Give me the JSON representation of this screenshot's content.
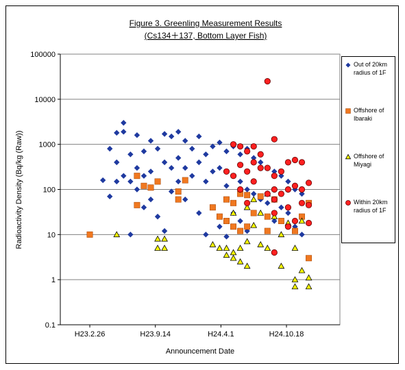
{
  "chart_data": {
    "type": "scatter",
    "title": "Figure 3. Greenling Measurement Results",
    "subtitle": "(Cs134＋137, Bottom Layer Fish)",
    "x_label": "Announcement Date",
    "y_label": "Radioactivity Density (Bq/kg (Raw))",
    "log_y": true,
    "grid": true,
    "legend": "right",
    "xlim": [
      "H22.11.28",
      "H25.3.30"
    ],
    "xticks": [
      "H23.2.26",
      "H23.9.14",
      "H24.4.1",
      "H24.10.18"
    ],
    "ylim": [
      0.1,
      100000
    ],
    "yticks": [
      0.1,
      1,
      10,
      100,
      1000,
      10000,
      100000
    ],
    "series": [
      {
        "name": "Out of 20km radius of 1F",
        "color": "#1f3aa0",
        "marker": "diamond",
        "x": [
          "H23.4.7",
          "H23.4.28",
          "H23.4.28",
          "H23.5.19",
          "H23.5.19",
          "H23.5.19",
          "H23.6.9",
          "H23.6.9",
          "H23.6.9",
          "H23.6.30",
          "H23.6.30",
          "H23.6.30",
          "H23.7.20",
          "H23.7.20",
          "H23.7.20",
          "H23.8.10",
          "H23.8.10",
          "H23.8.10",
          "H23.8.31",
          "H23.8.31",
          "H23.8.31",
          "H23.9.21",
          "H23.9.21",
          "H23.9.21",
          "H23.10.12",
          "H23.10.12",
          "H23.10.12",
          "H23.11.2",
          "H23.11.2",
          "H23.11.2",
          "H23.11.23",
          "H23.11.23",
          "H23.11.23",
          "H23.12.14",
          "H23.12.14",
          "H23.12.14",
          "H24.1.4",
          "H24.1.4",
          "H24.1.25",
          "H24.1.25",
          "H24.1.25",
          "H24.2.15",
          "H24.2.15",
          "H24.2.15",
          "H24.3.7",
          "H24.3.7",
          "H24.3.7",
          "H24.3.28",
          "H24.3.28",
          "H24.3.28",
          "H24.4.18",
          "H24.4.18",
          "H24.4.18",
          "H24.5.9",
          "H24.5.9",
          "H24.5.9",
          "H24.5.30",
          "H24.5.30",
          "H24.5.30",
          "H24.6.20",
          "H24.6.20",
          "H24.6.20",
          "H24.7.10",
          "H24.7.10",
          "H24.7.31",
          "H24.7.31",
          "H24.8.21",
          "H24.8.21",
          "H24.9.11",
          "H24.9.11",
          "H24.10.2",
          "H24.10.2",
          "H24.10.23",
          "H24.10.23",
          "H24.11.13",
          "H24.11.13",
          "H24.12.4",
          "H24.12.4"
        ],
        "values": [
          160,
          800,
          70,
          1800,
          400,
          150,
          3000,
          1900,
          200,
          600,
          150,
          10,
          1600,
          300,
          100,
          700,
          200,
          40,
          1200,
          250,
          60,
          800,
          150,
          25,
          1700,
          400,
          12,
          1500,
          300,
          90,
          1900,
          500,
          150,
          1200,
          300,
          60,
          800,
          200,
          1500,
          400,
          30,
          600,
          150,
          10,
          900,
          250,
          40,
          1100,
          300,
          15,
          700,
          120,
          9,
          900,
          200,
          30,
          600,
          150,
          20,
          800,
          100,
          12,
          500,
          80,
          400,
          60,
          300,
          50,
          250,
          20,
          200,
          40,
          150,
          30,
          100,
          15,
          80,
          10
        ]
      },
      {
        "name": "Offshore of Ibaraki",
        "color": "#f07820",
        "marker": "square",
        "x": [
          "H23.2.26",
          "H23.7.20",
          "H23.7.20",
          "H23.8.10",
          "H23.8.31",
          "H23.9.21",
          "H23.11.23",
          "H23.11.23",
          "H23.12.14",
          "H24.3.7",
          "H24.3.28",
          "H24.4.18",
          "H24.4.18",
          "H24.5.9",
          "H24.5.9",
          "H24.5.30",
          "H24.5.30",
          "H24.6.20",
          "H24.6.20",
          "H24.7.10",
          "H24.7.31",
          "H24.8.21",
          "H24.8.21",
          "H24.9.11",
          "H24.10.2",
          "H24.11.13",
          "H24.12.4",
          "H24.12.25",
          "H24.12.25"
        ],
        "values": [
          10,
          200,
          45,
          120,
          110,
          150,
          90,
          60,
          160,
          40,
          25,
          60,
          20,
          50,
          15,
          80,
          12,
          75,
          15,
          30,
          70,
          12,
          25,
          60,
          20,
          12,
          25,
          3,
          50
        ]
      },
      {
        "name": "Offshore of Miyagi",
        "color": "#ffff00",
        "marker": "triangle",
        "x": [
          "H23.5.19",
          "H23.9.21",
          "H23.9.21",
          "H23.10.12",
          "H23.10.12",
          "H24.3.7",
          "H24.3.28",
          "H24.4.18",
          "H24.4.18",
          "H24.5.9",
          "H24.5.9",
          "H24.5.9",
          "H24.5.30",
          "H24.5.30",
          "H24.6.20",
          "H24.6.20",
          "H24.6.20",
          "H24.7.10",
          "H24.7.10",
          "H24.7.31",
          "H24.7.31",
          "H24.8.21",
          "H24.8.21",
          "H24.9.11",
          "H24.10.2",
          "H24.10.2",
          "H24.10.23",
          "H24.11.13",
          "H24.11.13",
          "H24.11.13",
          "H24.12.4",
          "H24.12.25",
          "H24.12.25",
          "H24.12.4"
        ],
        "values": [
          10,
          8,
          5,
          5,
          8,
          6,
          5,
          5,
          3.5,
          4,
          3,
          30,
          5,
          2.5,
          7,
          2,
          40,
          16,
          60,
          6,
          30,
          5,
          80,
          25,
          10,
          2,
          18,
          5,
          1,
          0.7,
          1.6,
          1.1,
          0.7,
          20
        ]
      },
      {
        "name": "Within 20km radius of 1F",
        "color": "#ff2020",
        "marker": "circle",
        "x": [
          "H24.4.18",
          "H24.5.9",
          "H24.5.9",
          "H24.5.30",
          "H24.5.30",
          "H24.5.30",
          "H24.6.20",
          "H24.6.20",
          "H24.6.20",
          "H24.7.10",
          "H24.7.10",
          "H24.7.10",
          "H24.7.31",
          "H24.7.31",
          "H24.8.21",
          "H24.8.21",
          "H24.8.21",
          "H24.9.11",
          "H24.9.11",
          "H24.9.11",
          "H24.9.11",
          "H24.9.11",
          "H24.9.11",
          "H24.10.2",
          "H24.10.2",
          "H24.10.23",
          "H24.10.23",
          "H24.10.23",
          "H24.10.23",
          "H24.11.13",
          "H24.11.13",
          "H24.11.13",
          "H24.12.4",
          "H24.12.4",
          "H24.12.4",
          "H24.12.25",
          "H24.12.25",
          "H24.12.25"
        ],
        "values": [
          250,
          1000,
          200,
          900,
          350,
          100,
          700,
          250,
          50,
          900,
          400,
          150,
          600,
          300,
          25000,
          300,
          80,
          1300,
          200,
          100,
          60,
          30,
          4,
          250,
          80,
          400,
          100,
          40,
          15,
          450,
          120,
          20,
          400,
          100,
          50,
          140,
          45,
          18
        ]
      }
    ]
  }
}
